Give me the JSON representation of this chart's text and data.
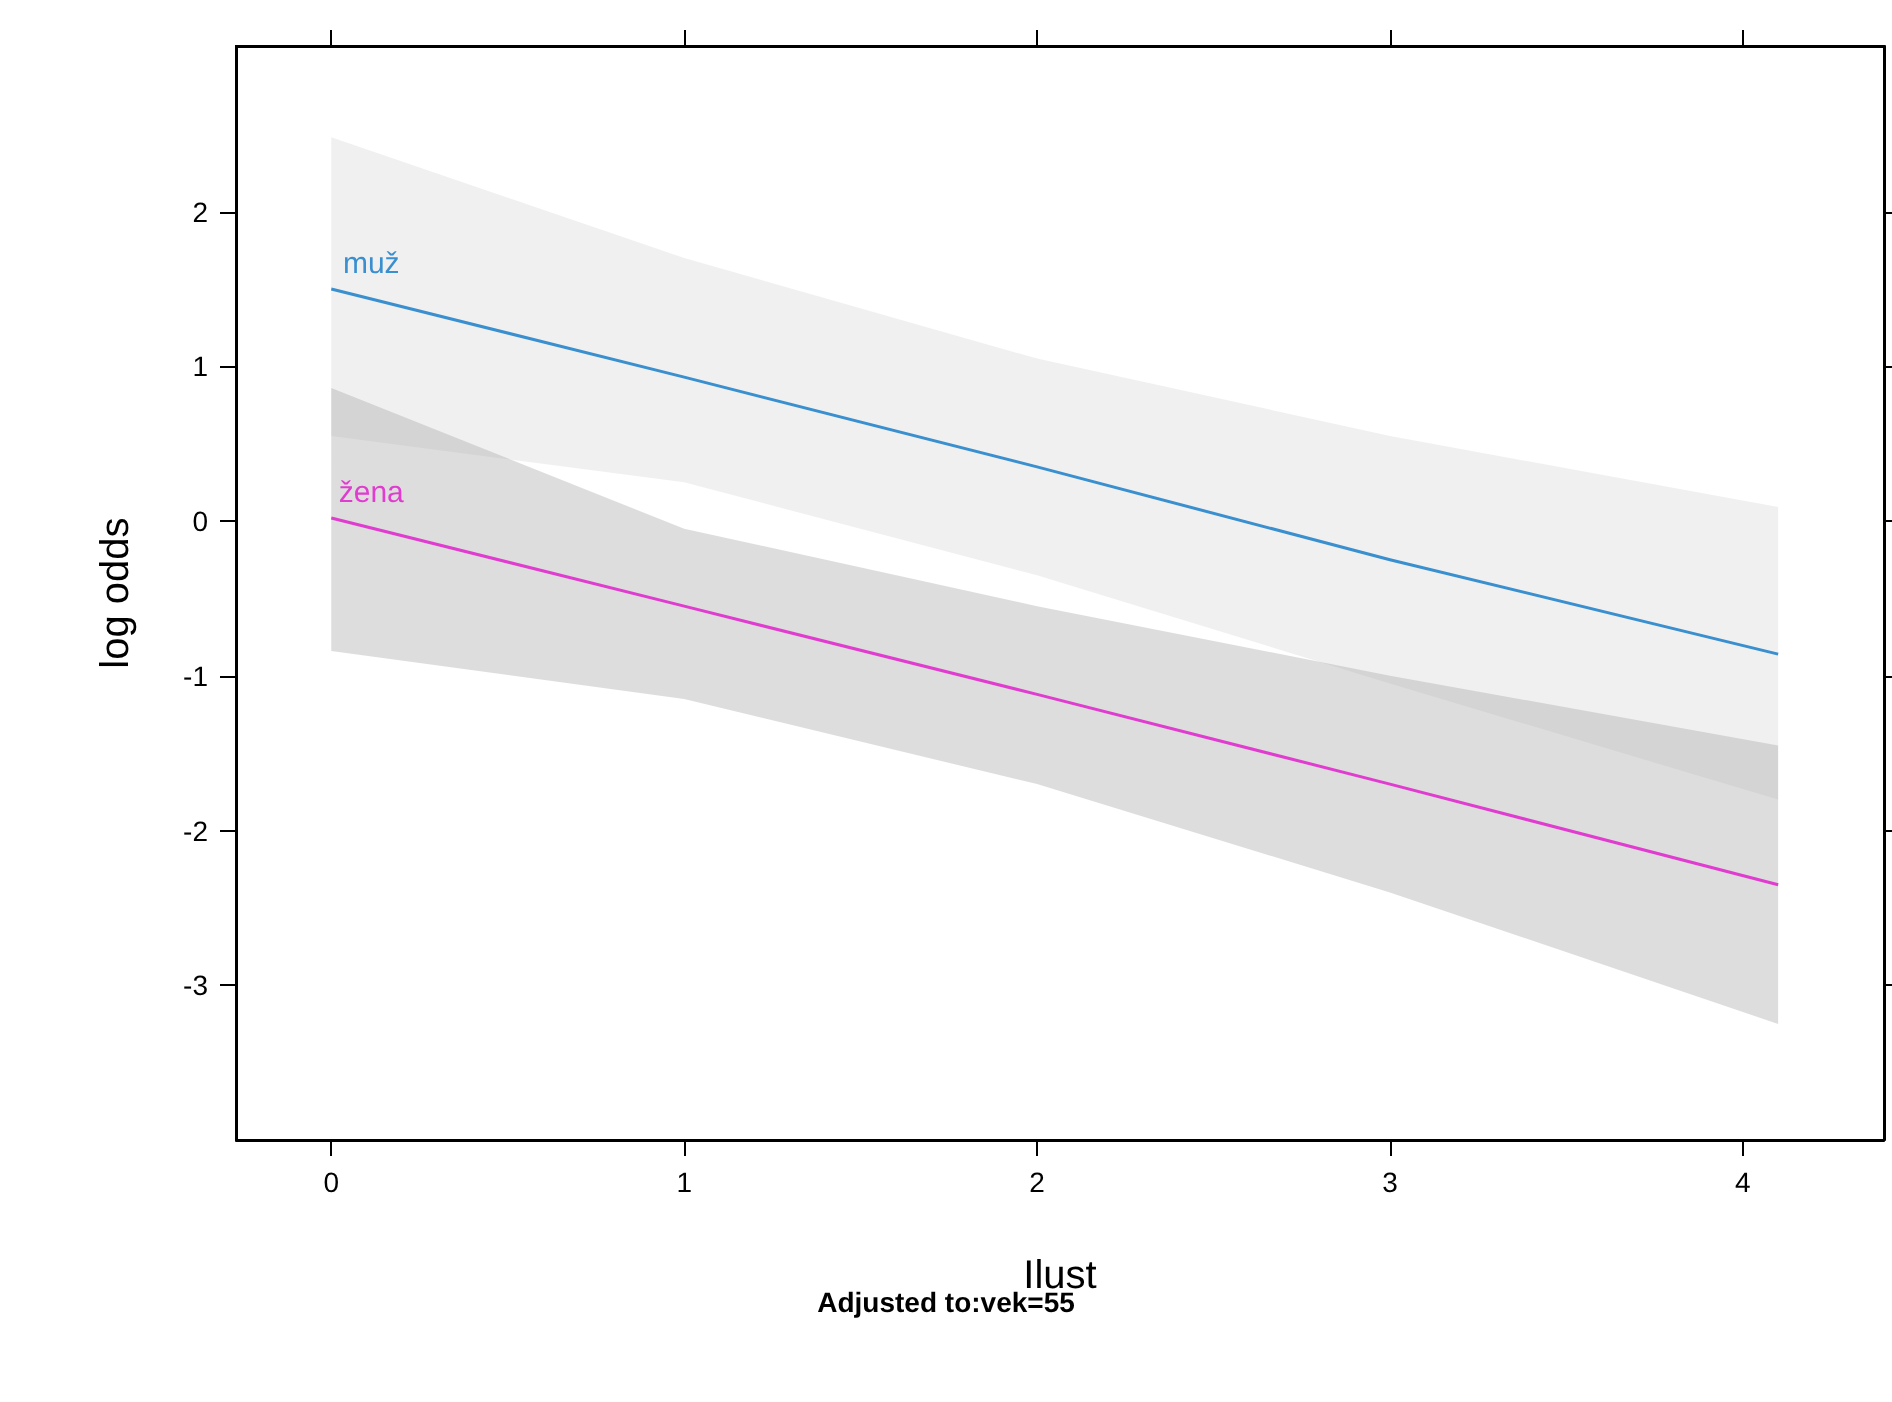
{
  "chart_data": {
    "type": "line",
    "xlabel": "Ilust",
    "ylabel": "log odds",
    "annotations": [
      "Adjusted to:vek=55"
    ],
    "x": [
      0,
      1,
      2,
      3,
      4.1
    ],
    "series": [
      {
        "name": "muž",
        "color": "#3a8fcf",
        "values": [
          1.5,
          0.93,
          0.35,
          -0.25,
          -0.86
        ],
        "lower": [
          0.55,
          0.25,
          -0.35,
          -1.05,
          -1.8
        ],
        "upper": [
          2.48,
          1.7,
          1.05,
          0.55,
          0.09
        ]
      },
      {
        "name": "žena",
        "color": "#e03ccf",
        "values": [
          0.02,
          -0.55,
          -1.12,
          -1.7,
          -2.35
        ],
        "lower": [
          -0.84,
          -1.15,
          -1.7,
          -2.4,
          -3.25
        ],
        "upper": [
          0.86,
          -0.05,
          -0.55,
          -1.0,
          -1.45
        ]
      }
    ],
    "xlim": [
      -0.27,
      4.4
    ],
    "ylim": [
      -4.0,
      3.07
    ],
    "xticks": [
      0,
      1,
      2,
      3,
      4
    ],
    "yticks": [
      -3,
      -2,
      -1,
      0,
      1,
      2
    ],
    "grid": false,
    "legend": false,
    "marker": "none",
    "line_style": "solid"
  }
}
